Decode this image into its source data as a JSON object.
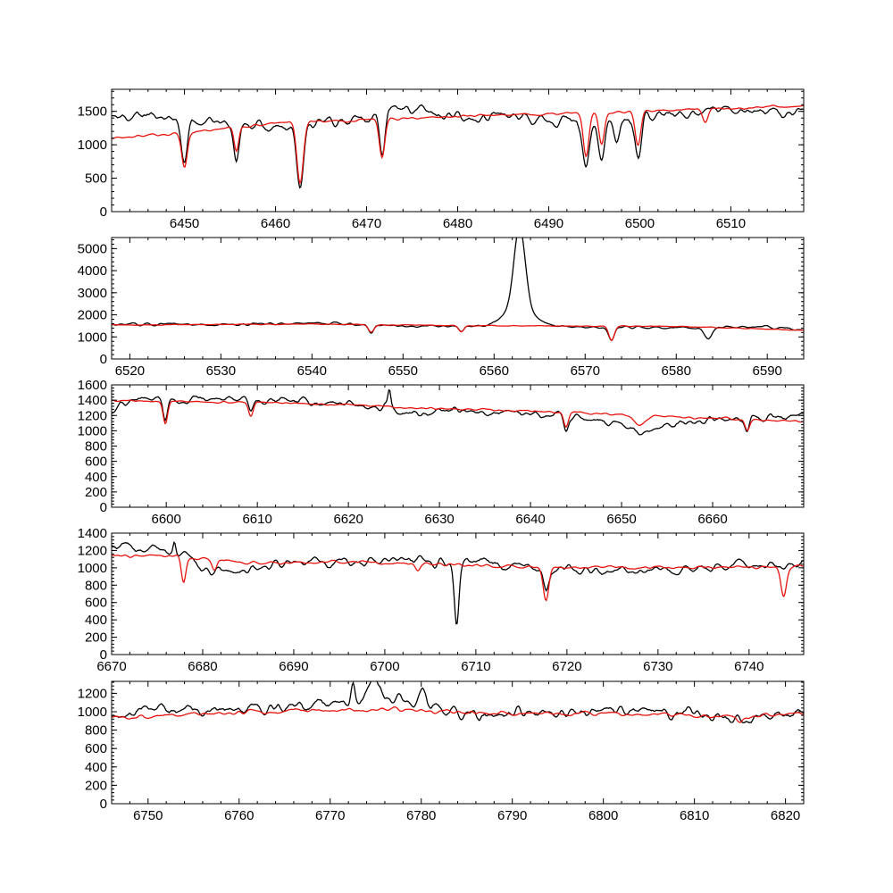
{
  "chart_data": [
    {
      "type": "line",
      "title": "",
      "xlabel": "",
      "ylabel": "",
      "xlim": [
        6442,
        6518
      ],
      "ylim": [
        0,
        1830
      ],
      "xticks": [
        6450,
        6460,
        6470,
        6480,
        6490,
        6500,
        6510
      ],
      "yticks": [
        0,
        500,
        1000,
        1500
      ],
      "grid": false,
      "series": [
        {
          "color": "#000000",
          "baseline": [
            [
              6442,
              1400
            ],
            [
              6446,
              1450
            ],
            [
              6450,
              1380
            ],
            [
              6455,
              1300
            ],
            [
              6460,
              1280
            ],
            [
              6465,
              1330
            ],
            [
              6470,
              1420
            ],
            [
              6474,
              1560
            ],
            [
              6480,
              1440
            ],
            [
              6485,
              1450
            ],
            [
              6490,
              1400
            ],
            [
              6495,
              1350
            ],
            [
              6500,
              1450
            ],
            [
              6505,
              1480
            ],
            [
              6510,
              1550
            ],
            [
              6515,
              1480
            ],
            [
              6518,
              1450
            ]
          ],
          "noise": 90,
          "lines": [
            [
              6450,
              620,
              0.35
            ],
            [
              6455.7,
              500,
              0.3
            ],
            [
              6462.7,
              880,
              0.4
            ],
            [
              6471.7,
              620,
              0.3
            ],
            [
              6494.1,
              730,
              0.35
            ],
            [
              6495.8,
              600,
              0.35
            ],
            [
              6499.8,
              560,
              0.35
            ],
            [
              6497.5,
              350,
              0.3
            ]
          ],
          "emissions": [],
          "seed": 11
        },
        {
          "color": "#e8120c",
          "baseline": [
            [
              6442,
              1100
            ],
            [
              6450,
              1180
            ],
            [
              6460,
              1320
            ],
            [
              6470,
              1380
            ],
            [
              6480,
              1430
            ],
            [
              6490,
              1460
            ],
            [
              6500,
              1500
            ],
            [
              6510,
              1550
            ],
            [
              6518,
              1580
            ]
          ],
          "noise": 22,
          "lines": [
            [
              6450,
              520,
              0.3
            ],
            [
              6455.7,
              340,
              0.25
            ],
            [
              6462.7,
              920,
              0.35
            ],
            [
              6471.7,
              600,
              0.3
            ],
            [
              6494.1,
              640,
              0.3
            ],
            [
              6495.8,
              460,
              0.3
            ],
            [
              6499.8,
              500,
              0.3
            ],
            [
              6507.2,
              220,
              0.3
            ]
          ],
          "emissions": [],
          "seed": 21
        }
      ]
    },
    {
      "type": "line",
      "title": "",
      "xlabel": "",
      "ylabel": "",
      "xlim": [
        6518,
        6594
      ],
      "ylim": [
        0,
        5500
      ],
      "xticks": [
        6520,
        6530,
        6540,
        6550,
        6560,
        6570,
        6580,
        6590
      ],
      "yticks": [
        0,
        1000,
        2000,
        3000,
        4000,
        5000
      ],
      "grid": false,
      "series": [
        {
          "color": "#000000",
          "baseline": [
            [
              6518,
              1550
            ],
            [
              6530,
              1560
            ],
            [
              6540,
              1650
            ],
            [
              6550,
              1500
            ],
            [
              6560,
              1500
            ],
            [
              6570,
              1450
            ],
            [
              6580,
              1400
            ],
            [
              6590,
              1450
            ],
            [
              6594,
              1300
            ]
          ],
          "noise": 70,
          "lines": [
            [
              6546.5,
              350,
              0.3
            ],
            [
              6556.4,
              300,
              0.3
            ],
            [
              6572.9,
              650,
              0.3
            ],
            [
              6583.5,
              500,
              0.4
            ]
          ],
          "emissions": [
            [
              6562.8,
              3600,
              0.6
            ],
            [
              6562.8,
              900,
              1.6
            ]
          ],
          "seed": 31
        },
        {
          "color": "#e8120c",
          "baseline": [
            [
              6518,
              1540
            ],
            [
              6540,
              1580
            ],
            [
              6560,
              1500
            ],
            [
              6580,
              1480
            ],
            [
              6594,
              1300
            ]
          ],
          "noise": 20,
          "lines": [
            [
              6546.5,
              350,
              0.3
            ],
            [
              6556.4,
              300,
              0.3
            ],
            [
              6572.9,
              650,
              0.3
            ]
          ],
          "emissions": [],
          "seed": 41
        }
      ]
    },
    {
      "type": "line",
      "title": "",
      "xlabel": "",
      "ylabel": "",
      "xlim": [
        6594,
        6670
      ],
      "ylim": [
        0,
        1600
      ],
      "xticks": [
        6600,
        6610,
        6620,
        6630,
        6640,
        6650,
        6660
      ],
      "yticks": [
        0,
        200,
        400,
        600,
        800,
        1000,
        1200,
        1400,
        1600
      ],
      "grid": false,
      "series": [
        {
          "color": "#000000",
          "baseline": [
            [
              6594,
              1300
            ],
            [
              6597,
              1420
            ],
            [
              6605,
              1420
            ],
            [
              6615,
              1400
            ],
            [
              6624,
              1330
            ],
            [
              6627,
              1220
            ],
            [
              6630,
              1250
            ],
            [
              6640,
              1220
            ],
            [
              6648,
              1150
            ],
            [
              6652,
              1000
            ],
            [
              6656,
              1090
            ],
            [
              6660,
              1130
            ],
            [
              6665,
              1180
            ],
            [
              6670,
              1200
            ]
          ],
          "noise": 55,
          "lines": [
            [
              6599.9,
              300,
              0.25
            ],
            [
              6609.3,
              180,
              0.25
            ],
            [
              6643.9,
              200,
              0.25
            ],
            [
              6663.8,
              150,
              0.25
            ]
          ],
          "emissions": [
            [
              6624.5,
              220,
              0.15
            ]
          ],
          "seed": 51
        },
        {
          "color": "#e8120c",
          "baseline": [
            [
              6594,
              1390
            ],
            [
              6605,
              1380
            ],
            [
              6620,
              1340
            ],
            [
              6624.6,
              1320
            ],
            [
              6625.2,
              1300
            ],
            [
              6640,
              1260
            ],
            [
              6650,
              1210
            ],
            [
              6660,
              1160
            ],
            [
              6670,
              1130
            ]
          ],
          "noise": 15,
          "lines": [
            [
              6599.9,
              300,
              0.25
            ],
            [
              6609.3,
              180,
              0.25
            ],
            [
              6643.9,
              200,
              0.25
            ],
            [
              6652.0,
              130,
              0.6
            ],
            [
              6663.8,
              150,
              0.25
            ]
          ],
          "emissions": [],
          "seed": 61
        }
      ]
    },
    {
      "type": "line",
      "title": "",
      "xlabel": "",
      "ylabel": "",
      "xlim": [
        6670,
        6746
      ],
      "ylim": [
        0,
        1400
      ],
      "xticks": [
        6670,
        6680,
        6690,
        6700,
        6710,
        6720,
        6730,
        6740
      ],
      "yticks": [
        0,
        200,
        400,
        600,
        800,
        1000,
        1200,
        1400
      ],
      "grid": false,
      "series": [
        {
          "color": "#000000",
          "baseline": [
            [
              6670,
              1250
            ],
            [
              6675,
              1230
            ],
            [
              6678,
              1150
            ],
            [
              6681,
              920
            ],
            [
              6685,
              980
            ],
            [
              6690,
              1050
            ],
            [
              6700,
              1080
            ],
            [
              6707,
              1050
            ],
            [
              6710,
              1100
            ],
            [
              6715,
              1000
            ],
            [
              6720,
              970
            ],
            [
              6730,
              980
            ],
            [
              6740,
              1020
            ],
            [
              6746,
              1050
            ]
          ],
          "noise": 60,
          "lines": [
            [
              6707.9,
              720,
              0.25
            ],
            [
              6717.7,
              300,
              0.3
            ]
          ],
          "emissions": [
            [
              6676.9,
              140,
              0.15
            ]
          ],
          "seed": 71
        },
        {
          "color": "#e8120c",
          "baseline": [
            [
              6670,
              1150
            ],
            [
              6678,
              1130
            ],
            [
              6685,
              1060
            ],
            [
              6700,
              1060
            ],
            [
              6715,
              1010
            ],
            [
              6730,
              1000
            ],
            [
              6746,
              1010
            ]
          ],
          "noise": 20,
          "lines": [
            [
              6677.9,
              300,
              0.25
            ],
            [
              6681.3,
              120,
              0.25
            ],
            [
              6703.6,
              80,
              0.25
            ],
            [
              6717.7,
              380,
              0.3
            ],
            [
              6743.8,
              330,
              0.3
            ]
          ],
          "emissions": [],
          "seed": 81
        }
      ]
    },
    {
      "type": "line",
      "title": "",
      "xlabel": "",
      "ylabel": "",
      "xlim": [
        6746,
        6822
      ],
      "ylim": [
        0,
        1330
      ],
      "xticks": [
        6750,
        6760,
        6770,
        6780,
        6790,
        6800,
        6810,
        6820
      ],
      "yticks": [
        0,
        200,
        400,
        600,
        800,
        1000,
        1200
      ],
      "grid": false,
      "series": [
        {
          "color": "#000000",
          "baseline": [
            [
              6746,
              950
            ],
            [
              6750,
              1000
            ],
            [
              6760,
              1030
            ],
            [
              6770,
              1080
            ],
            [
              6775,
              1200
            ],
            [
              6780,
              1100
            ],
            [
              6782,
              960
            ],
            [
              6790,
              980
            ],
            [
              6800,
              1030
            ],
            [
              6810,
              1000
            ],
            [
              6815,
              900
            ],
            [
              6822,
              1000
            ]
          ],
          "noise": 70,
          "lines": [],
          "emissions": [
            [
              6772.5,
              180,
              0.2
            ],
            [
              6774.8,
              200,
              0.3
            ],
            [
              6780.2,
              170,
              0.3
            ]
          ],
          "seed": 91
        },
        {
          "color": "#e8120c",
          "baseline": [
            [
              6746,
              940
            ],
            [
              6760,
              990
            ],
            [
              6770,
              1020
            ],
            [
              6780,
              1020
            ],
            [
              6790,
              980
            ],
            [
              6800,
              990
            ],
            [
              6815,
              940
            ],
            [
              6822,
              990
            ]
          ],
          "noise": 25,
          "lines": [
            [
              6815.0,
              80,
              0.3
            ]
          ],
          "emissions": [],
          "seed": 101
        }
      ]
    }
  ]
}
